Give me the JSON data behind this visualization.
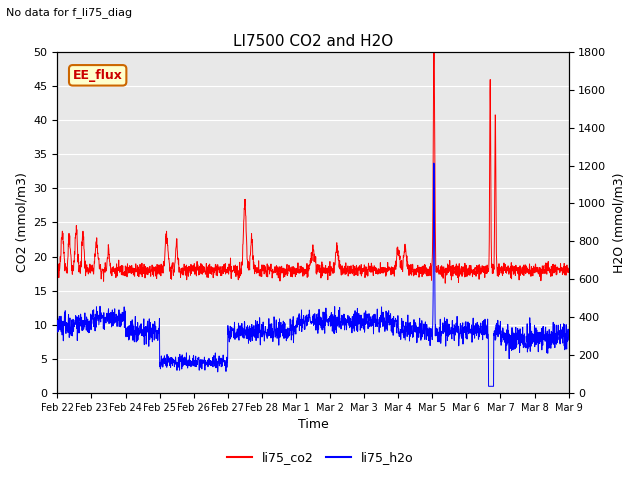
{
  "title": "LI7500 CO2 and H2O",
  "subtitle": "No data for f_li75_diag",
  "xlabel": "Time",
  "ylabel_left": "CO2 (mmol/m3)",
  "ylabel_right": "H2O (mmol/m3)",
  "ylim_left": [
    0,
    50
  ],
  "ylim_right": [
    0,
    1800
  ],
  "legend_labels": [
    "li75_co2",
    "li75_h2o"
  ],
  "co2_color": "red",
  "h2o_color": "blue",
  "bg_color": "#e8e8e8",
  "plot_bg_color": "#ffffff",
  "box_label": "EE_flux",
  "box_text_color": "#cc0000",
  "box_bg_color": "#ffffcc",
  "box_edge_color": "#cc6600",
  "n_points": 2160,
  "n_days": 15
}
